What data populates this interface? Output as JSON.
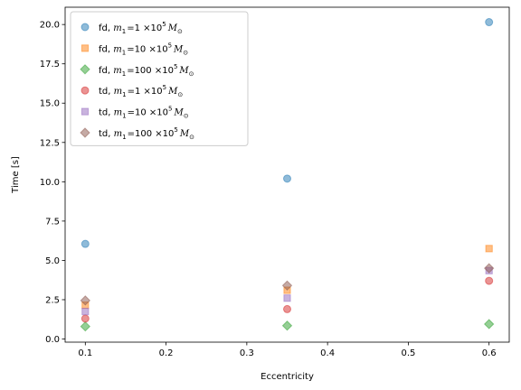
{
  "chart_data": {
    "type": "scatter",
    "title": "",
    "xlabel": "Eccentricity",
    "ylabel": "Time [s]",
    "xlim": [
      0.075,
      0.625
    ],
    "ylim": [
      -0.2,
      21.1
    ],
    "xticks": [
      0.1,
      0.2,
      0.3,
      0.4,
      0.5,
      0.6
    ],
    "xtick_labels": [
      "0.1",
      "0.2",
      "0.3",
      "0.4",
      "0.5",
      "0.6"
    ],
    "yticks": [
      0.0,
      2.5,
      5.0,
      7.5,
      10.0,
      12.5,
      15.0,
      17.5,
      20.0
    ],
    "ytick_labels": [
      "0.0",
      "2.5",
      "5.0",
      "7.5",
      "10.0",
      "12.5",
      "15.0",
      "17.5",
      "20.0"
    ],
    "grid": false,
    "legend_position": "top-left",
    "series": [
      {
        "prefix": "fd",
        "mass": "1",
        "marker": "circle",
        "color": "#1f77b4",
        "points": [
          [
            0.1,
            6.05
          ],
          [
            0.35,
            10.2
          ],
          [
            0.6,
            20.15
          ]
        ]
      },
      {
        "prefix": "fd",
        "mass": "10",
        "marker": "square",
        "color": "#ff7f0e",
        "points": [
          [
            0.1,
            2.15
          ],
          [
            0.35,
            3.1
          ],
          [
            0.6,
            5.75
          ]
        ]
      },
      {
        "prefix": "fd",
        "mass": "100",
        "marker": "diamond",
        "color": "#2ca02c",
        "points": [
          [
            0.1,
            0.8
          ],
          [
            0.35,
            0.85
          ],
          [
            0.6,
            0.95
          ]
        ]
      },
      {
        "prefix": "td",
        "mass": "1",
        "marker": "circle",
        "color": "#d62728",
        "points": [
          [
            0.1,
            1.3
          ],
          [
            0.35,
            1.9
          ],
          [
            0.6,
            3.7
          ]
        ]
      },
      {
        "prefix": "td",
        "mass": "10",
        "marker": "square",
        "color": "#9467bd",
        "points": [
          [
            0.1,
            1.75
          ],
          [
            0.35,
            2.6
          ],
          [
            0.6,
            4.35
          ]
        ]
      },
      {
        "prefix": "td",
        "mass": "100",
        "marker": "diamond",
        "color": "#8c564b",
        "points": [
          [
            0.1,
            2.45
          ],
          [
            0.35,
            3.4
          ],
          [
            0.6,
            4.5
          ]
        ]
      }
    ],
    "legend_label_parts": {
      "m_symbol": "m",
      "m_subscript": "1",
      "equals": "=",
      "times": "×10",
      "exponent": "5",
      "unit": "M",
      "unit_subscript": "⊙"
    }
  }
}
